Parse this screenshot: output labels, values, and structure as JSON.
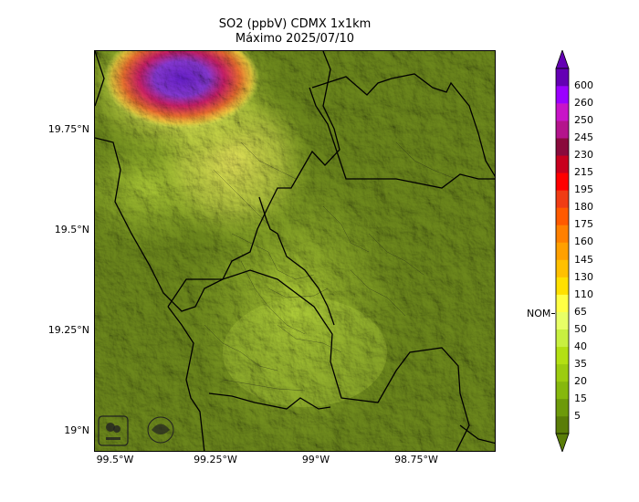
{
  "title": "SO2 (ppbV) CDMX 1x1km",
  "subtitle": "Máximo 2025/07/10",
  "map": {
    "lat_labels": [
      "19.75°N",
      "19.5°N",
      "19.25°N",
      "19°N"
    ],
    "lon_labels": [
      "99.5°W",
      "99.25°W",
      "99°W",
      "98.75°W"
    ],
    "logos": [
      "sedema-logo",
      "government-seal"
    ]
  },
  "colorbar": {
    "unit_marker": "NOM",
    "levels": [
      "5",
      "15",
      "20",
      "35",
      "40",
      "50",
      "65",
      "110",
      "130",
      "145",
      "160",
      "175",
      "180",
      "195",
      "215",
      "230",
      "245",
      "250",
      "260",
      "600"
    ],
    "colors": [
      "#5a7d08",
      "#6d9a0a",
      "#86b80d",
      "#9ccc10",
      "#b3e013",
      "#c8f040",
      "#e8ff66",
      "#ffff44",
      "#ffe000",
      "#ffc000",
      "#ffa000",
      "#ff8000",
      "#ff5a00",
      "#f03c14",
      "#ff0000",
      "#c8001e",
      "#8a0a3c",
      "#b4148c",
      "#c814c8",
      "#9b00ff",
      "#6400b4"
    ]
  },
  "chart_data": {
    "type": "heatmap",
    "title": "SO2 (ppbV) CDMX 1x1km",
    "subtitle": "Máximo 2025/07/10",
    "x_ticks": [
      "99.5°W",
      "99.25°W",
      "99°W",
      "98.75°W"
    ],
    "y_ticks": [
      "19.75°N",
      "19.5°N",
      "19.25°N",
      "19°N"
    ],
    "colorbar_levels": [
      5,
      15,
      20,
      35,
      40,
      50,
      65,
      110,
      130,
      145,
      160,
      175,
      180,
      195,
      215,
      230,
      245,
      250,
      260,
      600
    ],
    "colorbar_marker": "NOM",
    "maximum_region": "north-west corner",
    "lon_range": [
      -99.55,
      -98.55
    ],
    "lat_range": [
      18.95,
      19.95
    ]
  }
}
